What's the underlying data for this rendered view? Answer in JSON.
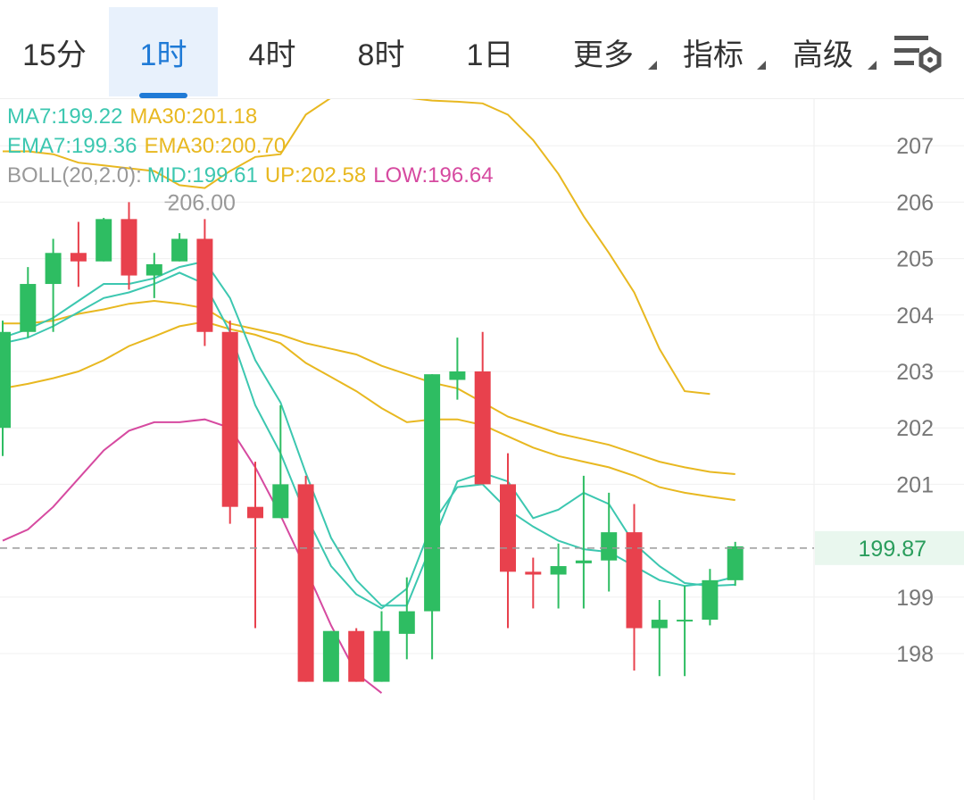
{
  "tabs": [
    {
      "label": "15分",
      "active": false,
      "dropdown": false
    },
    {
      "label": "1时",
      "active": true,
      "dropdown": false
    },
    {
      "label": "4时",
      "active": false,
      "dropdown": false
    },
    {
      "label": "8时",
      "active": false,
      "dropdown": false
    },
    {
      "label": "1日",
      "active": false,
      "dropdown": false
    },
    {
      "label": "更多",
      "active": false,
      "dropdown": true
    },
    {
      "label": "指标",
      "active": false,
      "dropdown": true
    },
    {
      "label": "高级",
      "active": false,
      "dropdown": true
    }
  ],
  "settings_icon": "chart-settings-icon",
  "legend": {
    "ma7_label": "MA7:",
    "ma7_value": "199.22",
    "ma30_label": "MA30:",
    "ma30_value": "201.18",
    "ema7_label": "EMA7:",
    "ema7_value": "199.36",
    "ema30_label": "EMA30:",
    "ema30_value": "200.70",
    "boll_label": "BOLL(20,2.0):",
    "mid_label": "MID:",
    "mid_value": "199.61",
    "up_label": "UP:",
    "up_value": "202.58",
    "low_label": "LOW:",
    "low_value": "196.64"
  },
  "colors": {
    "up": "#2ebd62",
    "down": "#e8414d",
    "ma7": "#3cc7b0",
    "ma30": "#e8b820",
    "boll_low": "#d64aa0",
    "current_price_bg": "#e9f7ee",
    "current_price_text": "#2a9d5c"
  },
  "chart_data": {
    "type": "candlestick",
    "yaxis": {
      "ticks": [
        207,
        206,
        205,
        204,
        203,
        202,
        201,
        199,
        198
      ],
      "range": [
        197.6,
        207.8
      ]
    },
    "current_price": "199.87",
    "current_price_value": 199.87,
    "high_marker": "206.00",
    "high_marker_value": 206.0,
    "candles": [
      {
        "o": 202.0,
        "c": 203.7,
        "h": 203.9,
        "l": 201.5
      },
      {
        "o": 203.7,
        "c": 204.55,
        "h": 204.85,
        "l": 203.6
      },
      {
        "o": 204.55,
        "c": 205.1,
        "h": 205.35,
        "l": 203.7
      },
      {
        "o": 205.1,
        "c": 204.95,
        "h": 205.65,
        "l": 204.5
      },
      {
        "o": 204.95,
        "c": 205.7,
        "h": 205.72,
        "l": 204.95
      },
      {
        "o": 205.7,
        "c": 204.7,
        "h": 206.0,
        "l": 204.45
      },
      {
        "o": 204.7,
        "c": 204.9,
        "h": 205.1,
        "l": 204.3
      },
      {
        "o": 204.95,
        "c": 205.35,
        "h": 205.45,
        "l": 204.95
      },
      {
        "o": 205.35,
        "c": 203.7,
        "h": 205.7,
        "l": 203.45
      },
      {
        "o": 203.7,
        "c": 200.6,
        "h": 203.9,
        "l": 200.3
      },
      {
        "o": 200.6,
        "c": 200.4,
        "h": 201.4,
        "l": 198.45
      },
      {
        "o": 200.4,
        "c": 201.0,
        "h": 202.4,
        "l": 200.4
      },
      {
        "o": 201.0,
        "c": 197.5,
        "h": 201.15,
        "l": 197.5
      },
      {
        "o": 197.5,
        "c": 198.4,
        "h": 198.4,
        "l": 197.5
      },
      {
        "o": 198.4,
        "c": 197.5,
        "h": 198.45,
        "l": 197.5
      },
      {
        "o": 197.5,
        "c": 198.4,
        "h": 198.75,
        "l": 197.5
      },
      {
        "o": 198.35,
        "c": 198.75,
        "h": 199.35,
        "l": 197.9
      },
      {
        "o": 198.75,
        "c": 202.95,
        "h": 202.95,
        "l": 197.9
      },
      {
        "o": 202.85,
        "c": 203.0,
        "h": 203.6,
        "l": 202.5
      },
      {
        "o": 203.0,
        "c": 201.0,
        "h": 203.7,
        "l": 201.0
      },
      {
        "o": 201.0,
        "c": 199.45,
        "h": 201.55,
        "l": 198.45
      },
      {
        "o": 199.45,
        "c": 199.4,
        "h": 199.7,
        "l": 198.8
      },
      {
        "o": 199.4,
        "c": 199.55,
        "h": 199.95,
        "l": 198.8
      },
      {
        "o": 199.6,
        "c": 199.65,
        "h": 201.15,
        "l": 198.8
      },
      {
        "o": 199.65,
        "c": 200.15,
        "h": 200.85,
        "l": 199.1
      },
      {
        "o": 200.15,
        "c": 198.45,
        "h": 200.65,
        "l": 197.7
      },
      {
        "o": 198.45,
        "c": 198.6,
        "h": 198.95,
        "l": 197.6
      },
      {
        "o": 198.6,
        "c": 198.6,
        "h": 199.2,
        "l": 197.6
      },
      {
        "o": 198.6,
        "c": 199.3,
        "h": 199.5,
        "l": 198.5
      },
      {
        "o": 199.3,
        "c": 199.9,
        "h": 199.98,
        "l": 199.2
      }
    ],
    "series": [
      {
        "key": "boll_up",
        "color": "#e8b820",
        "values": [
          206.9,
          206.9,
          206.85,
          206.7,
          206.65,
          206.6,
          206.55,
          206.3,
          206.25,
          206.55,
          206.8,
          206.85,
          207.55,
          207.85,
          207.88,
          207.88,
          207.85,
          207.8,
          207.78,
          207.75,
          207.55,
          207.1,
          206.5,
          205.75,
          205.1,
          204.4,
          203.4,
          202.65,
          202.6,
          null
        ]
      },
      {
        "key": "ema30",
        "color": "#e8b820",
        "values": [
          202.7,
          202.78,
          202.88,
          203.0,
          203.2,
          203.45,
          203.62,
          203.8,
          203.88,
          203.75,
          203.65,
          203.5,
          203.15,
          202.9,
          202.65,
          202.35,
          202.1,
          202.15,
          202.15,
          202.05,
          201.85,
          201.65,
          201.5,
          201.4,
          201.3,
          201.15,
          200.95,
          200.85,
          200.78,
          200.72
        ]
      },
      {
        "key": "ma30",
        "color": "#e8b820",
        "values": [
          203.85,
          203.85,
          203.9,
          204.02,
          204.1,
          204.2,
          204.25,
          204.2,
          204.12,
          203.85,
          203.75,
          203.65,
          203.5,
          203.4,
          203.3,
          203.1,
          202.95,
          202.8,
          202.7,
          202.45,
          202.2,
          202.05,
          201.9,
          201.8,
          201.7,
          201.55,
          201.4,
          201.3,
          201.22,
          201.18
        ]
      },
      {
        "key": "boll_low",
        "color": "#d64aa0",
        "values": [
          200.0,
          200.2,
          200.6,
          201.1,
          201.6,
          201.95,
          202.1,
          202.1,
          202.15,
          202.0,
          201.3,
          200.45,
          199.5,
          198.5,
          197.65,
          197.3,
          null,
          null,
          null,
          null,
          null,
          null,
          null,
          null,
          null,
          null,
          null,
          null,
          null,
          null
        ]
      },
      {
        "key": "ema7",
        "color": "#3cc7b0",
        "values": [
          203.5,
          203.6,
          203.8,
          204.05,
          204.3,
          204.4,
          204.55,
          204.75,
          204.55,
          203.7,
          202.4,
          201.55,
          200.45,
          199.55,
          199.05,
          198.8,
          199.15,
          200.3,
          200.95,
          201.0,
          200.55,
          200.25,
          200.0,
          199.85,
          199.8,
          199.55,
          199.3,
          199.2,
          199.25,
          199.36
        ]
      },
      {
        "key": "ma7",
        "color": "#3cc7b0",
        "values": [
          203.6,
          203.75,
          203.95,
          204.25,
          204.55,
          204.55,
          204.65,
          204.85,
          204.95,
          204.3,
          203.2,
          202.45,
          201.2,
          200.05,
          199.3,
          198.85,
          198.85,
          199.95,
          201.05,
          201.2,
          201.05,
          200.4,
          200.55,
          200.85,
          200.65,
          199.95,
          199.55,
          199.25,
          199.2,
          199.22
        ]
      }
    ]
  }
}
